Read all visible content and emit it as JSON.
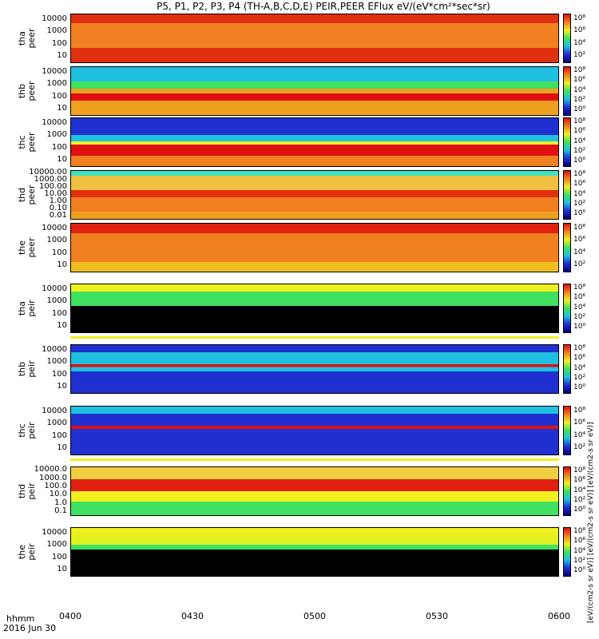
{
  "title": "P5, P1, P2, P3, P4 (TH-A,B,C,D,E) PEIR,PEER EFlux eV/(eV*cm²*sec*sr)",
  "colorbar_label": "[eV/(cm2-s sr eV)] [eV/(cm2-s sr eV)] [eV/(cm2-s sr eV)]",
  "x_axis": {
    "ticks": [
      "0400",
      "0430",
      "0500",
      "0530",
      "0600"
    ],
    "label_line1": "hhmm",
    "label_line2": "2016 Jun 30"
  },
  "colors": {
    "black": "#000000",
    "blue": "#2030d0",
    "cyan": "#20c0e0",
    "green": "#40e060",
    "yellow": "#f0f020",
    "orange": "#f08020",
    "red": "#e01010",
    "white": "#ffffff"
  },
  "chart_data": {
    "type": "heatmap",
    "x": [
      "0400",
      "0430",
      "0500",
      "0530",
      "0600"
    ],
    "panels": [
      {
        "probe": "tha",
        "species": "peer",
        "ylabel": "tha\npeer",
        "yticks": [
          "10000",
          "1000",
          "100",
          "10"
        ],
        "ylim": [
          5,
          30000
        ],
        "scale": "log",
        "cbar_ticks": [
          "10⁸",
          "10⁶",
          "10⁴",
          "10²"
        ]
      },
      {
        "probe": "thb",
        "species": "peer",
        "ylabel": "thb\npeer",
        "yticks": [
          "10000",
          "1000",
          "100",
          "10"
        ],
        "ylim": [
          5,
          30000
        ],
        "scale": "log",
        "cbar_ticks": [
          "10⁸",
          "10⁶",
          "10⁴",
          "10²",
          "10⁰"
        ]
      },
      {
        "probe": "thc",
        "species": "peer",
        "ylabel": "thc\npeer",
        "yticks": [
          "10000",
          "1000",
          "100",
          "10"
        ],
        "ylim": [
          5,
          30000
        ],
        "scale": "log",
        "cbar_ticks": [
          "10⁸",
          "10⁶",
          "10⁴",
          "10²",
          "10⁰"
        ]
      },
      {
        "probe": "thd",
        "species": "peer",
        "ylabel": "thd\npeer",
        "yticks": [
          "10000.00",
          "1000.00",
          "100.00",
          "10.00",
          "1.00",
          "0.10",
          "0.01"
        ],
        "ylim": [
          0.01,
          30000
        ],
        "scale": "log",
        "cbar_ticks": [
          "10⁸",
          "10⁶",
          "10⁴",
          "10²",
          "10⁰"
        ]
      },
      {
        "probe": "the",
        "species": "peer",
        "ylabel": "the\npeer",
        "yticks": [
          "10000",
          "1000",
          "100",
          "10"
        ],
        "ylim": [
          5,
          30000
        ],
        "scale": "log",
        "cbar_ticks": [
          "10⁸",
          "10⁶",
          "10⁴",
          "10²"
        ]
      },
      {
        "probe": "tha",
        "species": "peir",
        "ylabel": "tha\npeir",
        "yticks": [
          "10000",
          "1000",
          "100",
          "10"
        ],
        "ylim": [
          5,
          30000
        ],
        "scale": "log",
        "cbar_ticks": [
          "10⁸",
          "10⁶",
          "10⁴",
          "10²",
          "10⁰"
        ]
      },
      {
        "probe": "thb",
        "species": "peir",
        "ylabel": "thb\npeir",
        "yticks": [
          "10000",
          "1000",
          "100",
          "10"
        ],
        "ylim": [
          5,
          30000
        ],
        "scale": "log",
        "cbar_ticks": [
          "10⁸",
          "10⁶",
          "10⁴",
          "10²",
          "10⁰"
        ]
      },
      {
        "probe": "thc",
        "species": "peir",
        "ylabel": "thc\npeir",
        "yticks": [
          "10000",
          "1000",
          "100",
          "10"
        ],
        "ylim": [
          5,
          30000
        ],
        "scale": "log",
        "cbar_ticks": [
          "10⁸",
          "10⁶",
          "10⁴",
          "10²"
        ]
      },
      {
        "probe": "thd",
        "species": "peir",
        "ylabel": "thd\npeir",
        "yticks": [
          "10000.0",
          "1000.0",
          "100.0",
          "10.0",
          "1.0",
          "0.1"
        ],
        "ylim": [
          0.05,
          30000
        ],
        "scale": "log",
        "cbar_ticks": [
          "10⁸",
          "10⁶",
          "10⁴",
          "10²",
          "10⁰"
        ]
      },
      {
        "probe": "the",
        "species": "peir",
        "ylabel": "the\npeir",
        "yticks": [
          "10000",
          "1000",
          "100",
          "10"
        ],
        "ylim": [
          5,
          30000
        ],
        "scale": "log",
        "cbar_ticks": [
          "10⁸",
          "10⁶",
          "10⁴",
          "10²",
          "10⁰"
        ]
      }
    ]
  }
}
